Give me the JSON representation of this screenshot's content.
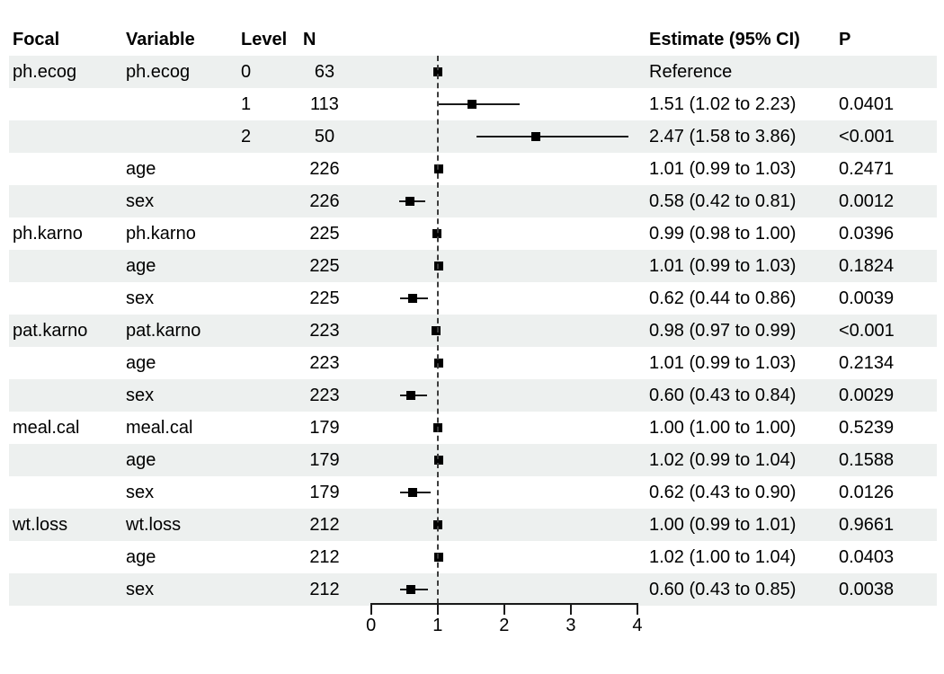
{
  "colors": {
    "background": "#ffffff",
    "stripe": "#edf0ef",
    "text": "#000000",
    "marker": "#000000",
    "ci_line": "#1a1a1a",
    "reference_line": "#3d3d3d",
    "axis": "#1a1a1a"
  },
  "chart_data": {
    "type": "scatter",
    "variant": "forest-plot",
    "title": "",
    "xlabel": "",
    "ylabel": "",
    "xlim": [
      0,
      4
    ],
    "xticks": [
      0,
      1,
      2,
      3,
      4
    ],
    "reference_line_x": 1,
    "grid": false,
    "legend": "none",
    "columns": [
      "Focal",
      "Variable",
      "Level",
      "N",
      "Estimate (95% CI)",
      "P"
    ],
    "rows": [
      {
        "focal": "ph.ecog",
        "variable": "ph.ecog",
        "level": "0",
        "n": "63",
        "estimate_label": "Reference",
        "p": "",
        "est": 1.0,
        "lo": 1.0,
        "hi": 1.0,
        "reference": true
      },
      {
        "focal": "",
        "variable": "",
        "level": "1",
        "n": "113",
        "estimate_label": "1.51 (1.02 to 2.23)",
        "p": "0.0401",
        "est": 1.51,
        "lo": 1.02,
        "hi": 2.23,
        "reference": false
      },
      {
        "focal": "",
        "variable": "",
        "level": "2",
        "n": "50",
        "estimate_label": "2.47 (1.58 to 3.86)",
        "p": "<0.001",
        "est": 2.47,
        "lo": 1.58,
        "hi": 3.86,
        "reference": false
      },
      {
        "focal": "",
        "variable": "age",
        "level": "",
        "n": "226",
        "estimate_label": "1.01 (0.99 to 1.03)",
        "p": "0.2471",
        "est": 1.01,
        "lo": 0.99,
        "hi": 1.03,
        "reference": false
      },
      {
        "focal": "",
        "variable": "sex",
        "level": "",
        "n": "226",
        "estimate_label": "0.58 (0.42 to 0.81)",
        "p": "0.0012",
        "est": 0.58,
        "lo": 0.42,
        "hi": 0.81,
        "reference": false
      },
      {
        "focal": "ph.karno",
        "variable": "ph.karno",
        "level": "",
        "n": "225",
        "estimate_label": "0.99 (0.98 to 1.00)",
        "p": "0.0396",
        "est": 0.99,
        "lo": 0.98,
        "hi": 1.0,
        "reference": false
      },
      {
        "focal": "",
        "variable": "age",
        "level": "",
        "n": "225",
        "estimate_label": "1.01 (0.99 to 1.03)",
        "p": "0.1824",
        "est": 1.01,
        "lo": 0.99,
        "hi": 1.03,
        "reference": false
      },
      {
        "focal": "",
        "variable": "sex",
        "level": "",
        "n": "225",
        "estimate_label": "0.62 (0.44 to 0.86)",
        "p": "0.0039",
        "est": 0.62,
        "lo": 0.44,
        "hi": 0.86,
        "reference": false
      },
      {
        "focal": "pat.karno",
        "variable": "pat.karno",
        "level": "",
        "n": "223",
        "estimate_label": "0.98 (0.97 to 0.99)",
        "p": "<0.001",
        "est": 0.98,
        "lo": 0.97,
        "hi": 0.99,
        "reference": false
      },
      {
        "focal": "",
        "variable": "age",
        "level": "",
        "n": "223",
        "estimate_label": "1.01 (0.99 to 1.03)",
        "p": "0.2134",
        "est": 1.01,
        "lo": 0.99,
        "hi": 1.03,
        "reference": false
      },
      {
        "focal": "",
        "variable": "sex",
        "level": "",
        "n": "223",
        "estimate_label": "0.60 (0.43 to 0.84)",
        "p": "0.0029",
        "est": 0.6,
        "lo": 0.43,
        "hi": 0.84,
        "reference": false
      },
      {
        "focal": "meal.cal",
        "variable": "meal.cal",
        "level": "",
        "n": "179",
        "estimate_label": "1.00 (1.00 to 1.00)",
        "p": "0.5239",
        "est": 1.0,
        "lo": 1.0,
        "hi": 1.0,
        "reference": false
      },
      {
        "focal": "",
        "variable": "age",
        "level": "",
        "n": "179",
        "estimate_label": "1.02 (0.99 to 1.04)",
        "p": "0.1588",
        "est": 1.02,
        "lo": 0.99,
        "hi": 1.04,
        "reference": false
      },
      {
        "focal": "",
        "variable": "sex",
        "level": "",
        "n": "179",
        "estimate_label": "0.62 (0.43 to 0.90)",
        "p": "0.0126",
        "est": 0.62,
        "lo": 0.43,
        "hi": 0.9,
        "reference": false
      },
      {
        "focal": "wt.loss",
        "variable": "wt.loss",
        "level": "",
        "n": "212",
        "estimate_label": "1.00 (0.99 to 1.01)",
        "p": "0.9661",
        "est": 1.0,
        "lo": 0.99,
        "hi": 1.01,
        "reference": false
      },
      {
        "focal": "",
        "variable": "age",
        "level": "",
        "n": "212",
        "estimate_label": "1.02 (1.00 to 1.04)",
        "p": "0.0403",
        "est": 1.02,
        "lo": 1.0,
        "hi": 1.04,
        "reference": false
      },
      {
        "focal": "",
        "variable": "sex",
        "level": "",
        "n": "212",
        "estimate_label": "0.60 (0.43 to 0.85)",
        "p": "0.0038",
        "est": 0.6,
        "lo": 0.43,
        "hi": 0.85,
        "reference": false
      }
    ]
  }
}
